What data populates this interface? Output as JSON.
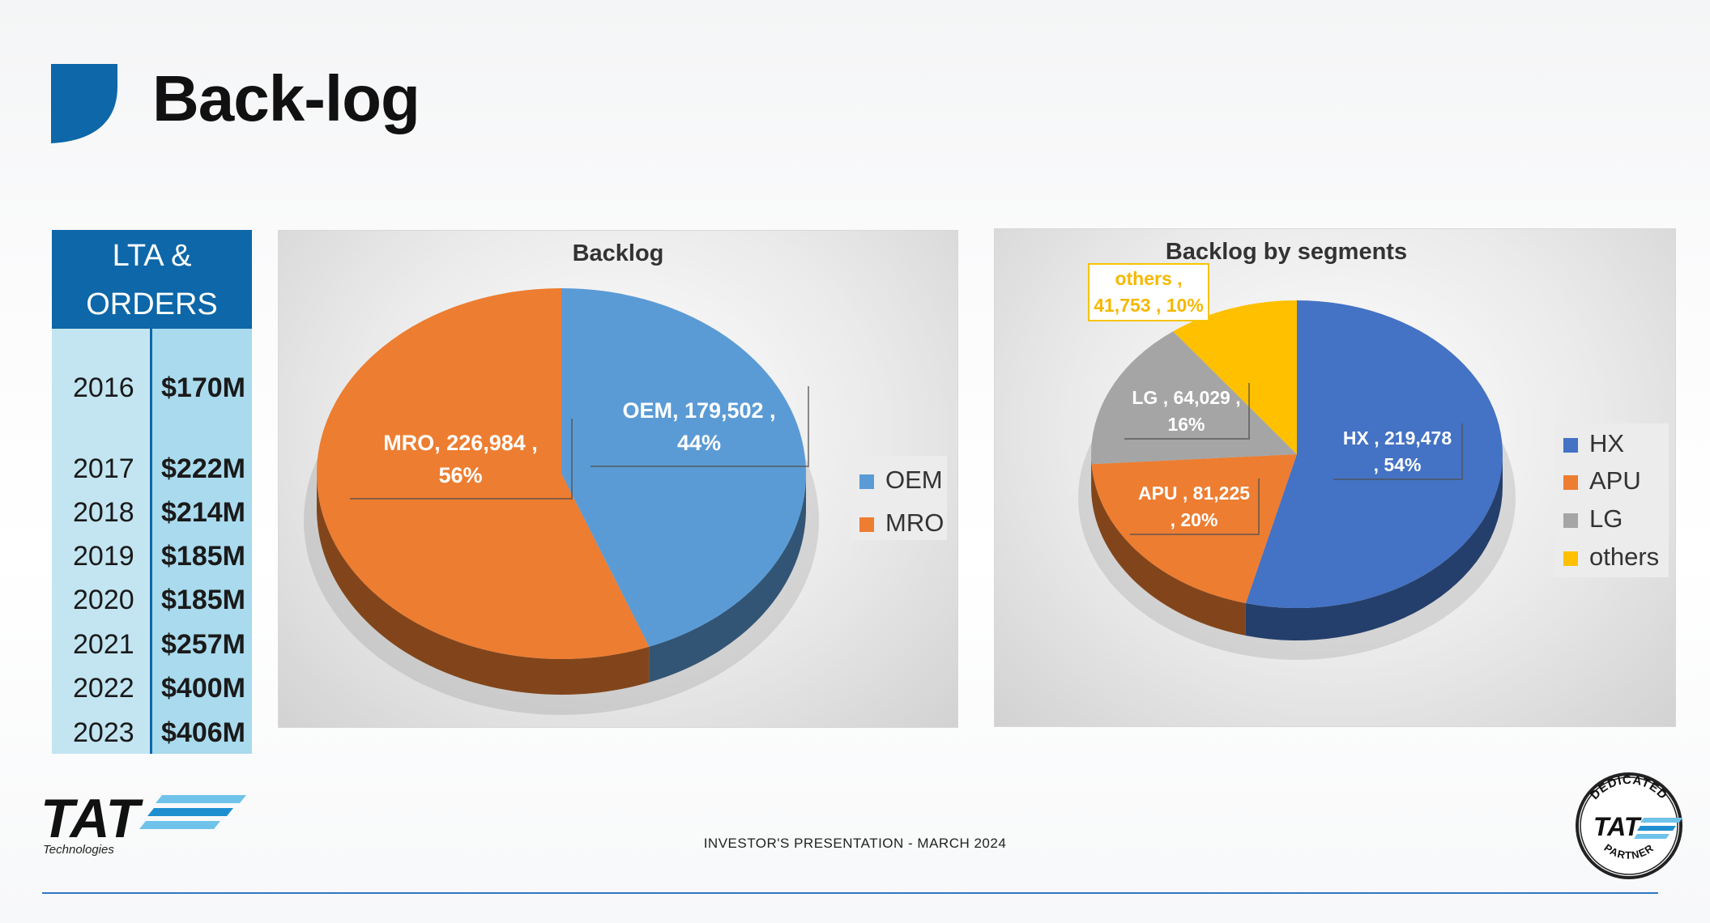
{
  "header": {
    "title": "Back-log"
  },
  "lta_table": {
    "header": [
      "LTA &",
      "ORDERS"
    ],
    "rows": [
      {
        "year": "2016",
        "value": "$170M"
      },
      {
        "year": "2017",
        "value": "$222M"
      },
      {
        "year": "2018",
        "value": "$214M"
      },
      {
        "year": "2019",
        "value": "$185M"
      },
      {
        "year": "2020",
        "value": "$185M"
      },
      {
        "year": "2021",
        "value": "$257M"
      },
      {
        "year": "2022",
        "value": "$400M"
      },
      {
        "year": "2023",
        "value": "$406M"
      }
    ]
  },
  "chart_data": [
    {
      "type": "pie",
      "title": "Backlog",
      "categories": [
        "OEM",
        "MRO"
      ],
      "values": [
        179502,
        226984
      ],
      "percents": [
        "44%",
        "56%"
      ],
      "data_labels": [
        [
          "OEM,  179,502 ,",
          "44%"
        ],
        [
          "MRO,  226,984 ,",
          "56%"
        ]
      ],
      "legend": [
        "OEM",
        "MRO"
      ],
      "legend_position": "right",
      "colors": [
        "#5b9bd5",
        "#ed7d31"
      ]
    },
    {
      "type": "pie",
      "title": "Backlog by segments",
      "categories": [
        "HX",
        "APU",
        "LG",
        "others"
      ],
      "values": [
        219478,
        81225,
        64029,
        41753
      ],
      "percents": [
        "54%",
        "20%",
        "16%",
        "10%"
      ],
      "data_labels": [
        [
          "HX ,  219,478",
          ", 54%"
        ],
        [
          "APU ,  81,225",
          ", 20%"
        ],
        [
          "LG ,  64,029 ,",
          "16%"
        ],
        [
          "others ,",
          "41,753 , 10%"
        ]
      ],
      "legend": [
        "HX",
        "APU",
        "LG",
        "others"
      ],
      "legend_position": "right",
      "colors": [
        "#4472c4",
        "#ed7d31",
        "#a5a5a5",
        "#ffc000"
      ]
    }
  ],
  "footer": {
    "text": "INVESTOR'S PRESENTATION - MARCH 2024",
    "logo_text": "TAT",
    "logo_sub": "Technologies",
    "badge_top": "DEDICATED",
    "badge_mid": "TAT",
    "badge_bottom": "PARTNER"
  },
  "colors": {
    "brand_blue": "#0d67a8",
    "table_light": "#c3e5f2",
    "table_mid": "#a9daed",
    "footer_line": "#2f79bf"
  }
}
